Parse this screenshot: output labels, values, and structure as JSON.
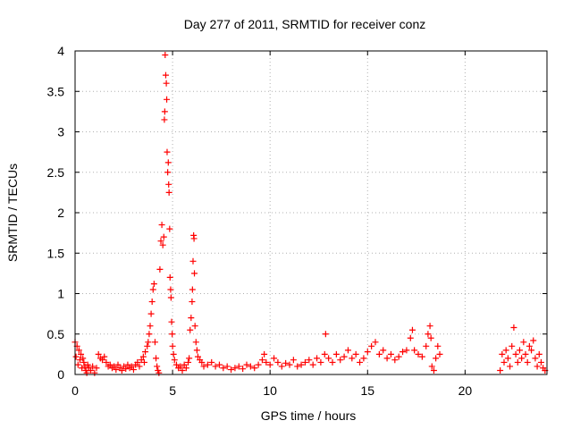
{
  "chart_data": {
    "type": "scatter",
    "title": "Day 277 of 2011, SRMTID for receiver conz",
    "xlabel": "GPS time / hours",
    "ylabel": "SRMTID / TECUs",
    "xlim": [
      0,
      24.2
    ],
    "ylim": [
      0,
      4
    ],
    "xticks": [
      0,
      5,
      10,
      15,
      20
    ],
    "xtick_labels": [
      "0",
      "5",
      "10",
      "15",
      "20"
    ],
    "yticks": [
      0,
      0.5,
      1,
      1.5,
      2,
      2.5,
      3,
      3.5,
      4
    ],
    "ytick_labels": [
      "0",
      "0.5",
      "1",
      "1.5",
      "2",
      "2.5",
      "3",
      "3.5",
      "4"
    ],
    "grid": true,
    "marker": "+",
    "color": "#ff0000",
    "series": [
      {
        "name": "SRMTID",
        "points": [
          [
            0.0,
            0.4
          ],
          [
            0.05,
            0.22
          ],
          [
            0.1,
            0.35
          ],
          [
            0.15,
            0.12
          ],
          [
            0.2,
            0.3
          ],
          [
            0.25,
            0.18
          ],
          [
            0.3,
            0.25
          ],
          [
            0.35,
            0.08
          ],
          [
            0.4,
            0.2
          ],
          [
            0.45,
            0.15
          ],
          [
            0.5,
            0.1
          ],
          [
            0.55,
            0.05
          ],
          [
            0.6,
            0.02
          ],
          [
            0.65,
            0.12
          ],
          [
            0.7,
            0.08
          ],
          [
            0.8,
            0.05
          ],
          [
            0.9,
            0.1
          ],
          [
            1.0,
            0.02
          ],
          [
            1.1,
            0.08
          ],
          [
            1.2,
            0.25
          ],
          [
            1.3,
            0.2
          ],
          [
            1.4,
            0.18
          ],
          [
            1.5,
            0.22
          ],
          [
            1.6,
            0.15
          ],
          [
            1.7,
            0.1
          ],
          [
            1.8,
            0.12
          ],
          [
            1.9,
            0.08
          ],
          [
            2.0,
            0.1
          ],
          [
            2.1,
            0.06
          ],
          [
            2.2,
            0.12
          ],
          [
            2.3,
            0.08
          ],
          [
            2.4,
            0.05
          ],
          [
            2.5,
            0.1
          ],
          [
            2.6,
            0.07
          ],
          [
            2.7,
            0.12
          ],
          [
            2.8,
            0.08
          ],
          [
            2.9,
            0.1
          ],
          [
            3.0,
            0.06
          ],
          [
            3.1,
            0.12
          ],
          [
            3.2,
            0.15
          ],
          [
            3.3,
            0.1
          ],
          [
            3.4,
            0.18
          ],
          [
            3.5,
            0.22
          ],
          [
            3.55,
            0.15
          ],
          [
            3.6,
            0.28
          ],
          [
            3.7,
            0.35
          ],
          [
            3.75,
            0.4
          ],
          [
            3.8,
            0.5
          ],
          [
            3.85,
            0.6
          ],
          [
            3.9,
            0.75
          ],
          [
            3.95,
            0.9
          ],
          [
            4.0,
            1.05
          ],
          [
            4.05,
            1.12
          ],
          [
            4.1,
            0.4
          ],
          [
            4.15,
            0.2
          ],
          [
            4.2,
            0.1
          ],
          [
            4.25,
            0.05
          ],
          [
            4.3,
            0.02
          ],
          [
            4.35,
            1.3
          ],
          [
            4.4,
            1.65
          ],
          [
            4.45,
            1.85
          ],
          [
            4.5,
            1.6
          ],
          [
            4.55,
            1.7
          ],
          [
            4.58,
            3.15
          ],
          [
            4.6,
            3.25
          ],
          [
            4.62,
            3.95
          ],
          [
            4.65,
            3.7
          ],
          [
            4.68,
            3.6
          ],
          [
            4.7,
            3.4
          ],
          [
            4.72,
            2.75
          ],
          [
            4.75,
            2.5
          ],
          [
            4.78,
            2.62
          ],
          [
            4.8,
            2.35
          ],
          [
            4.82,
            2.25
          ],
          [
            4.85,
            1.8
          ],
          [
            4.87,
            1.2
          ],
          [
            4.9,
            1.05
          ],
          [
            4.92,
            0.95
          ],
          [
            4.95,
            0.65
          ],
          [
            4.98,
            0.5
          ],
          [
            5.0,
            0.35
          ],
          [
            5.05,
            0.25
          ],
          [
            5.1,
            0.18
          ],
          [
            5.2,
            0.12
          ],
          [
            5.3,
            0.08
          ],
          [
            5.4,
            0.1
          ],
          [
            5.5,
            0.05
          ],
          [
            5.6,
            0.12
          ],
          [
            5.7,
            0.08
          ],
          [
            5.8,
            0.15
          ],
          [
            5.85,
            0.2
          ],
          [
            5.9,
            0.55
          ],
          [
            5.95,
            0.7
          ],
          [
            6.0,
            0.9
          ],
          [
            6.02,
            1.05
          ],
          [
            6.05,
            1.4
          ],
          [
            6.08,
            1.72
          ],
          [
            6.1,
            1.68
          ],
          [
            6.12,
            1.25
          ],
          [
            6.15,
            0.6
          ],
          [
            6.2,
            0.4
          ],
          [
            6.25,
            0.3
          ],
          [
            6.3,
            0.22
          ],
          [
            6.4,
            0.18
          ],
          [
            6.5,
            0.15
          ],
          [
            6.6,
            0.1
          ],
          [
            6.8,
            0.12
          ],
          [
            7.0,
            0.15
          ],
          [
            7.2,
            0.1
          ],
          [
            7.4,
            0.12
          ],
          [
            7.6,
            0.08
          ],
          [
            7.8,
            0.1
          ],
          [
            8.0,
            0.06
          ],
          [
            8.2,
            0.08
          ],
          [
            8.4,
            0.1
          ],
          [
            8.6,
            0.07
          ],
          [
            8.8,
            0.12
          ],
          [
            9.0,
            0.1
          ],
          [
            9.2,
            0.08
          ],
          [
            9.4,
            0.12
          ],
          [
            9.6,
            0.18
          ],
          [
            9.7,
            0.25
          ],
          [
            9.8,
            0.15
          ],
          [
            10.0,
            0.12
          ],
          [
            10.2,
            0.2
          ],
          [
            10.4,
            0.15
          ],
          [
            10.6,
            0.1
          ],
          [
            10.8,
            0.14
          ],
          [
            11.0,
            0.12
          ],
          [
            11.2,
            0.18
          ],
          [
            11.4,
            0.1
          ],
          [
            11.6,
            0.12
          ],
          [
            11.8,
            0.15
          ],
          [
            12.0,
            0.18
          ],
          [
            12.2,
            0.12
          ],
          [
            12.4,
            0.2
          ],
          [
            12.6,
            0.15
          ],
          [
            12.8,
            0.25
          ],
          [
            12.85,
            0.5
          ],
          [
            13.0,
            0.2
          ],
          [
            13.2,
            0.15
          ],
          [
            13.4,
            0.25
          ],
          [
            13.6,
            0.18
          ],
          [
            13.8,
            0.22
          ],
          [
            14.0,
            0.3
          ],
          [
            14.2,
            0.2
          ],
          [
            14.4,
            0.25
          ],
          [
            14.6,
            0.15
          ],
          [
            14.8,
            0.2
          ],
          [
            15.0,
            0.28
          ],
          [
            15.2,
            0.35
          ],
          [
            15.4,
            0.4
          ],
          [
            15.6,
            0.25
          ],
          [
            15.8,
            0.3
          ],
          [
            16.0,
            0.2
          ],
          [
            16.2,
            0.25
          ],
          [
            16.4,
            0.18
          ],
          [
            16.6,
            0.22
          ],
          [
            16.8,
            0.28
          ],
          [
            17.0,
            0.3
          ],
          [
            17.2,
            0.45
          ],
          [
            17.3,
            0.55
          ],
          [
            17.4,
            0.3
          ],
          [
            17.6,
            0.25
          ],
          [
            17.8,
            0.22
          ],
          [
            18.0,
            0.35
          ],
          [
            18.1,
            0.5
          ],
          [
            18.2,
            0.6
          ],
          [
            18.25,
            0.45
          ],
          [
            18.3,
            0.1
          ],
          [
            18.4,
            0.05
          ],
          [
            18.5,
            0.2
          ],
          [
            18.6,
            0.35
          ],
          [
            18.7,
            0.25
          ],
          [
            21.8,
            0.05
          ],
          [
            21.9,
            0.25
          ],
          [
            22.0,
            0.15
          ],
          [
            22.1,
            0.3
          ],
          [
            22.2,
            0.2
          ],
          [
            22.3,
            0.1
          ],
          [
            22.4,
            0.35
          ],
          [
            22.5,
            0.58
          ],
          [
            22.6,
            0.25
          ],
          [
            22.7,
            0.15
          ],
          [
            22.8,
            0.3
          ],
          [
            22.9,
            0.2
          ],
          [
            23.0,
            0.4
          ],
          [
            23.1,
            0.25
          ],
          [
            23.2,
            0.15
          ],
          [
            23.3,
            0.35
          ],
          [
            23.4,
            0.3
          ],
          [
            23.5,
            0.42
          ],
          [
            23.6,
            0.2
          ],
          [
            23.7,
            0.1
          ],
          [
            23.8,
            0.25
          ],
          [
            23.9,
            0.15
          ],
          [
            24.0,
            0.08
          ],
          [
            24.1,
            0.05
          ]
        ]
      }
    ]
  }
}
